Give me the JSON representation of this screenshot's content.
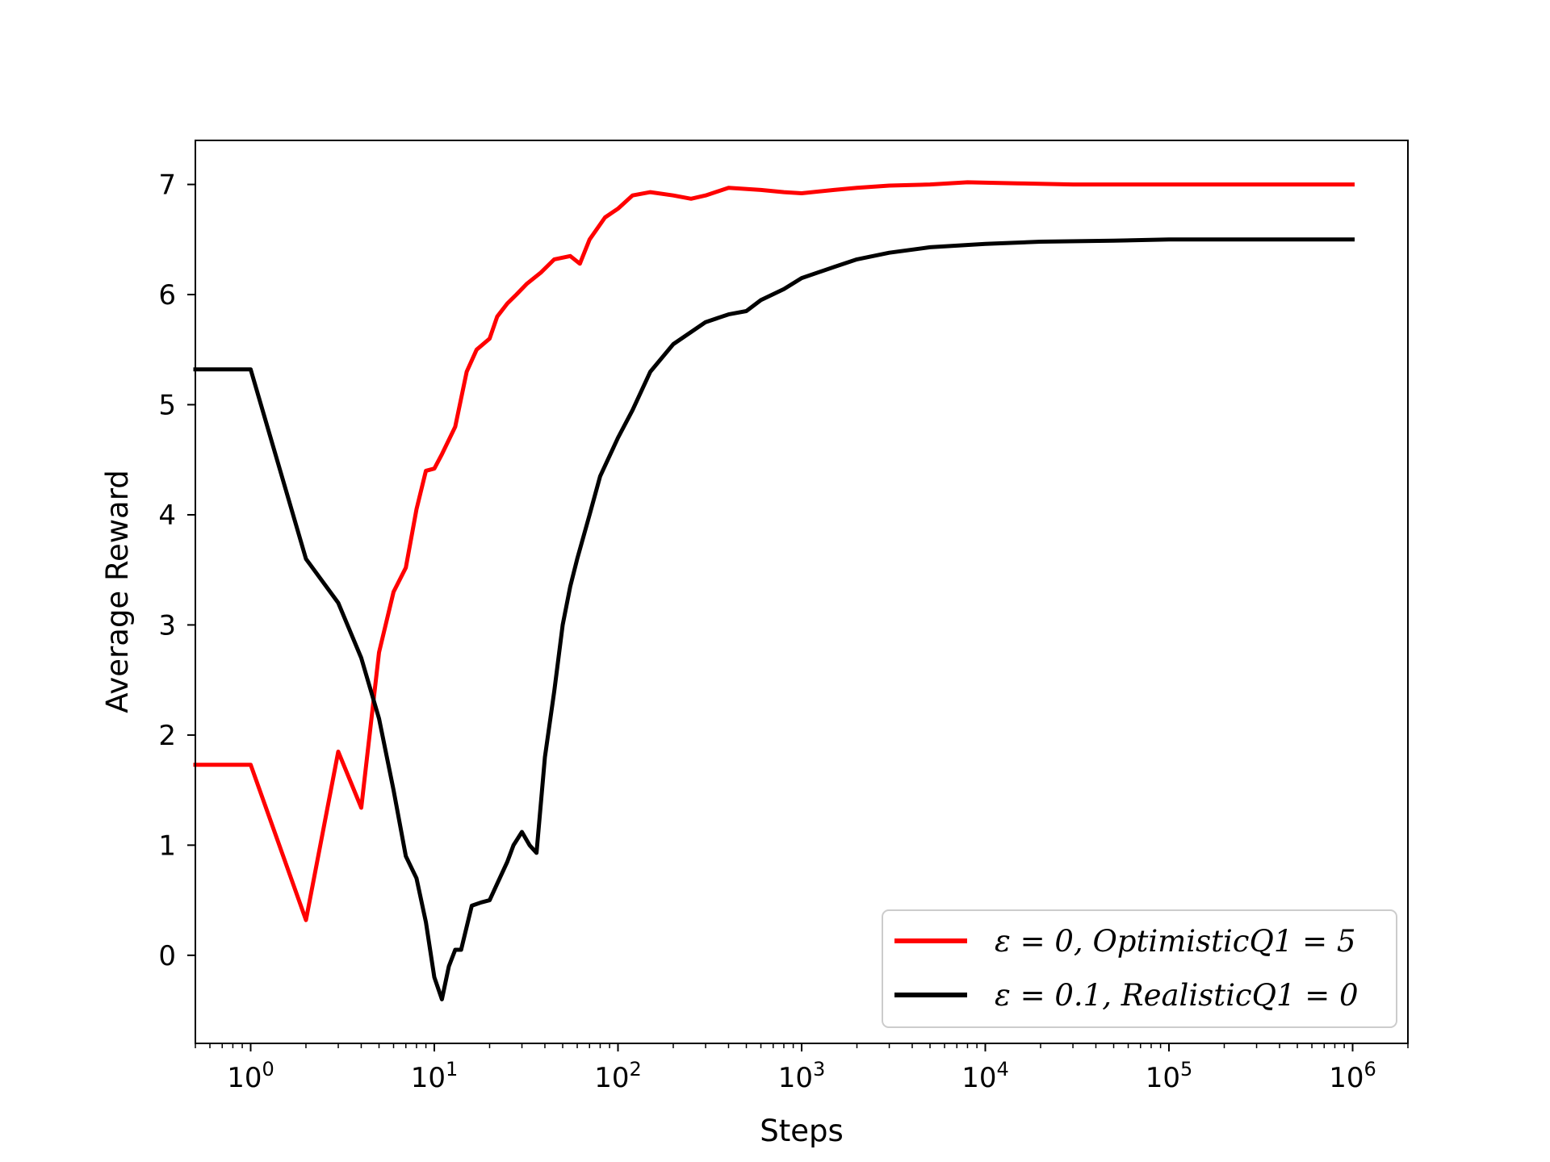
{
  "chart_data": {
    "type": "line",
    "xlabel": "Steps",
    "ylabel": "Average Reward",
    "xscale": "log",
    "xlim": [
      0.5,
      2000000
    ],
    "ylim": [
      -0.8,
      7.4
    ],
    "x_ticks": [
      {
        "value": 1,
        "base": "10",
        "exp": "0"
      },
      {
        "value": 10,
        "base": "10",
        "exp": "1"
      },
      {
        "value": 100,
        "base": "10",
        "exp": "2"
      },
      {
        "value": 1000,
        "base": "10",
        "exp": "3"
      },
      {
        "value": 10000,
        "base": "10",
        "exp": "4"
      },
      {
        "value": 100000,
        "base": "10",
        "exp": "5"
      },
      {
        "value": 1000000,
        "base": "10",
        "exp": "6"
      }
    ],
    "y_ticks": [
      0,
      1,
      2,
      3,
      4,
      5,
      6,
      7
    ],
    "grid": false,
    "legend_position": "lower-right",
    "series": [
      {
        "name": "ε = 0, OptimisticQ1 = 5",
        "color": "#ff0000",
        "points": [
          [
            0.5,
            1.73
          ],
          [
            1,
            1.73
          ],
          [
            2,
            0.32
          ],
          [
            3,
            1.85
          ],
          [
            4,
            1.34
          ],
          [
            5,
            2.75
          ],
          [
            6,
            3.3
          ],
          [
            7,
            3.52
          ],
          [
            8,
            4.05
          ],
          [
            9,
            4.4
          ],
          [
            10,
            4.42
          ],
          [
            11,
            4.55
          ],
          [
            13,
            4.8
          ],
          [
            15,
            5.3
          ],
          [
            17,
            5.5
          ],
          [
            20,
            5.6
          ],
          [
            22,
            5.8
          ],
          [
            25,
            5.92
          ],
          [
            28,
            6.0
          ],
          [
            32,
            6.1
          ],
          [
            38,
            6.2
          ],
          [
            45,
            6.32
          ],
          [
            55,
            6.35
          ],
          [
            62,
            6.28
          ],
          [
            70,
            6.5
          ],
          [
            85,
            6.7
          ],
          [
            100,
            6.78
          ],
          [
            120,
            6.9
          ],
          [
            150,
            6.93
          ],
          [
            200,
            6.9
          ],
          [
            250,
            6.87
          ],
          [
            300,
            6.9
          ],
          [
            400,
            6.97
          ],
          [
            600,
            6.95
          ],
          [
            800,
            6.93
          ],
          [
            1000,
            6.92
          ],
          [
            1500,
            6.95
          ],
          [
            2000,
            6.97
          ],
          [
            3000,
            6.99
          ],
          [
            5000,
            7.0
          ],
          [
            8000,
            7.02
          ],
          [
            15000,
            7.01
          ],
          [
            30000,
            7.0
          ],
          [
            100000,
            7.0
          ],
          [
            300000,
            7.0
          ],
          [
            1000000,
            7.0
          ]
        ]
      },
      {
        "name": "ε = 0.1, RealisticQ1 = 0",
        "color": "#000000",
        "points": [
          [
            0.5,
            5.32
          ],
          [
            1,
            5.32
          ],
          [
            2,
            3.6
          ],
          [
            3,
            3.2
          ],
          [
            4,
            2.7
          ],
          [
            5,
            2.15
          ],
          [
            6,
            1.5
          ],
          [
            7,
            0.9
          ],
          [
            8,
            0.7
          ],
          [
            9,
            0.3
          ],
          [
            10,
            -0.2
          ],
          [
            11,
            -0.4
          ],
          [
            12,
            -0.1
          ],
          [
            13,
            0.05
          ],
          [
            14,
            0.05
          ],
          [
            16,
            0.45
          ],
          [
            18,
            0.48
          ],
          [
            20,
            0.5
          ],
          [
            22,
            0.65
          ],
          [
            25,
            0.85
          ],
          [
            27,
            1.0
          ],
          [
            30,
            1.12
          ],
          [
            33,
            1.0
          ],
          [
            36,
            0.93
          ],
          [
            40,
            1.8
          ],
          [
            45,
            2.4
          ],
          [
            50,
            3.0
          ],
          [
            55,
            3.35
          ],
          [
            60,
            3.6
          ],
          [
            70,
            4.0
          ],
          [
            80,
            4.35
          ],
          [
            100,
            4.7
          ],
          [
            120,
            4.95
          ],
          [
            150,
            5.3
          ],
          [
            200,
            5.55
          ],
          [
            300,
            5.75
          ],
          [
            400,
            5.82
          ],
          [
            500,
            5.85
          ],
          [
            600,
            5.95
          ],
          [
            800,
            6.05
          ],
          [
            1000,
            6.15
          ],
          [
            1500,
            6.25
          ],
          [
            2000,
            6.32
          ],
          [
            3000,
            6.38
          ],
          [
            5000,
            6.43
          ],
          [
            10000,
            6.46
          ],
          [
            20000,
            6.48
          ],
          [
            50000,
            6.49
          ],
          [
            100000,
            6.5
          ],
          [
            300000,
            6.5
          ],
          [
            1000000,
            6.5
          ]
        ]
      }
    ]
  }
}
